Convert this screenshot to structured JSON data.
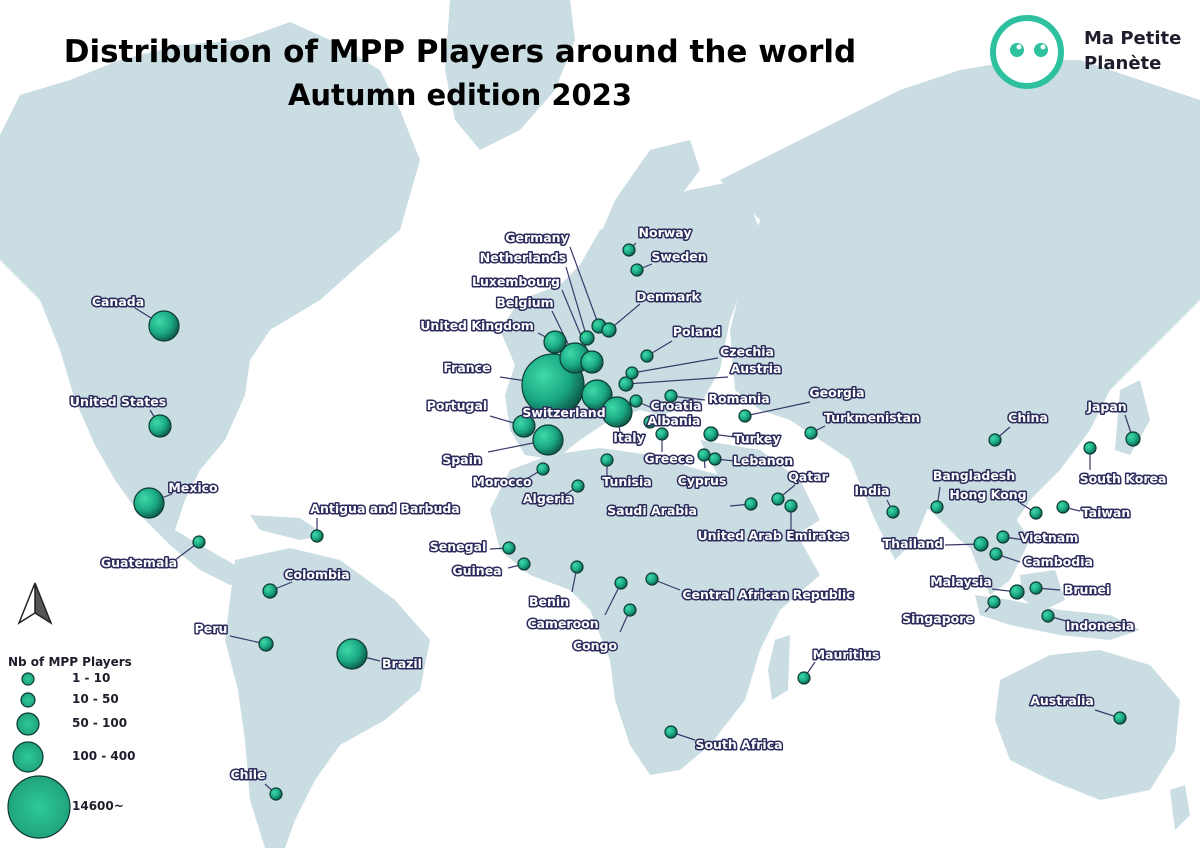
{
  "title": {
    "line1": "Distribution of MPP Players around the world",
    "line2": "Autumn edition 2023"
  },
  "brand": {
    "line1": "Ma Petite",
    "line2": "Planète",
    "color": "#2ec1a0"
  },
  "colors": {
    "land": "#c9dde2",
    "bubble": "#1aa882",
    "label_text": "#ffffff",
    "label_outline": "#2b2b5c",
    "leader": "#3a3a6a"
  },
  "legend": {
    "title": "Nb of MPP Players",
    "classes": [
      "1 - 10",
      "10 - 50",
      "50 - 100",
      "100 - 400",
      "14600~"
    ]
  },
  "countries": [
    {
      "name": "Canada",
      "class": 3
    },
    {
      "name": "United States",
      "class": 2
    },
    {
      "name": "Mexico",
      "class": 3
    },
    {
      "name": "Guatemala",
      "class": 0
    },
    {
      "name": "Antigua and Barbuda",
      "class": 0
    },
    {
      "name": "Colombia",
      "class": 1
    },
    {
      "name": "Peru",
      "class": 1
    },
    {
      "name": "Brazil",
      "class": 3
    },
    {
      "name": "Chile",
      "class": 0
    },
    {
      "name": "Germany",
      "class": 1
    },
    {
      "name": "Netherlands",
      "class": 1
    },
    {
      "name": "Luxembourg",
      "class": 2
    },
    {
      "name": "Belgium",
      "class": 3
    },
    {
      "name": "United Kingdom",
      "class": 2
    },
    {
      "name": "France",
      "class": 4
    },
    {
      "name": "Portugal",
      "class": 2
    },
    {
      "name": "Switzerland",
      "class": 3
    },
    {
      "name": "Spain",
      "class": 3
    },
    {
      "name": "Morocco",
      "class": 0
    },
    {
      "name": "Algeria",
      "class": 0
    },
    {
      "name": "Norway",
      "class": 0
    },
    {
      "name": "Sweden",
      "class": 0
    },
    {
      "name": "Denmark",
      "class": 1
    },
    {
      "name": "Poland",
      "class": 0
    },
    {
      "name": "Czechia",
      "class": 0
    },
    {
      "name": "Austria",
      "class": 1
    },
    {
      "name": "Romania",
      "class": 0
    },
    {
      "name": "Croatia",
      "class": 0
    },
    {
      "name": "Albania",
      "class": 0
    },
    {
      "name": "Italy",
      "class": 3
    },
    {
      "name": "Tunisia",
      "class": 0
    },
    {
      "name": "Greece",
      "class": 0
    },
    {
      "name": "Turkey",
      "class": 1
    },
    {
      "name": "Cyprus",
      "class": 0
    },
    {
      "name": "Lebanon",
      "class": 0
    },
    {
      "name": "Georgia",
      "class": 0
    },
    {
      "name": "Turkmenistan",
      "class": 0
    },
    {
      "name": "Saudi Arabia",
      "class": 0
    },
    {
      "name": "Qatar",
      "class": 0
    },
    {
      "name": "United Arab Emirates",
      "class": 0
    },
    {
      "name": "Senegal",
      "class": 0
    },
    {
      "name": "Guinea",
      "class": 0
    },
    {
      "name": "Benin",
      "class": 0
    },
    {
      "name": "Cameroon",
      "class": 0
    },
    {
      "name": "Congo",
      "class": 0
    },
    {
      "name": "Central African Republic",
      "class": 0
    },
    {
      "name": "South Africa",
      "class": 0
    },
    {
      "name": "Mauritius",
      "class": 0
    },
    {
      "name": "India",
      "class": 0
    },
    {
      "name": "Bangladesh",
      "class": 0
    },
    {
      "name": "China",
      "class": 0
    },
    {
      "name": "Japan",
      "class": 1
    },
    {
      "name": "South Korea",
      "class": 0
    },
    {
      "name": "Hong Kong",
      "class": 0
    },
    {
      "name": "Taiwan",
      "class": 0
    },
    {
      "name": "Thailand",
      "class": 1
    },
    {
      "name": "Vietnam",
      "class": 0
    },
    {
      "name": "Cambodia",
      "class": 0
    },
    {
      "name": "Malaysia",
      "class": 1
    },
    {
      "name": "Brunei",
      "class": 0
    },
    {
      "name": "Singapore",
      "class": 0
    },
    {
      "name": "Indonesia",
      "class": 0
    },
    {
      "name": "Australia",
      "class": 0
    }
  ]
}
